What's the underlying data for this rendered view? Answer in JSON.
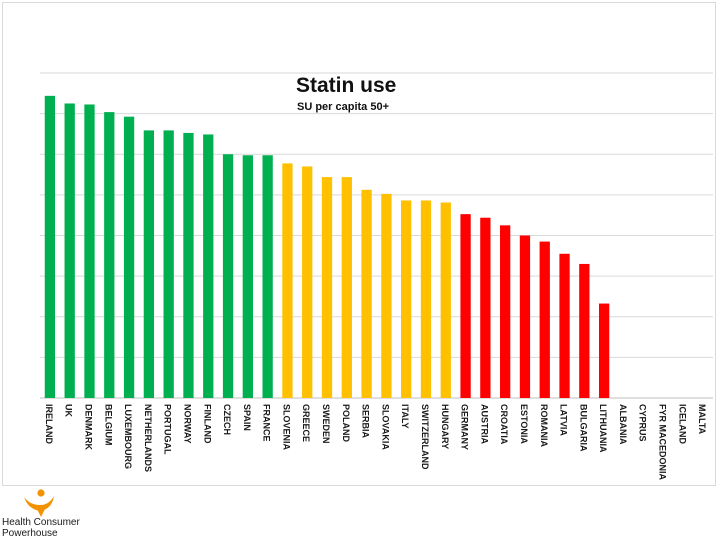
{
  "chart_data": {
    "type": "bar",
    "title": "Statin use",
    "subtitle": "SU per capita 50+",
    "ylim": [
      0,
      640
    ],
    "grid": true,
    "categories": [
      "IRELAND",
      "UK",
      "DENMARK",
      "BELGIUM",
      "LUXEMBOURG",
      "NETHERLANDS",
      "PORTUGAL",
      "NORWAY",
      "FINLAND",
      "CZECH",
      "SPAIN",
      "FRANCE",
      "SLOVENIA",
      "GREECE",
      "SWEDEN",
      "POLAND",
      "SERBIA",
      "SLOVAKIA",
      "ITALY",
      "SWITZERLAND",
      "HUNGARY",
      "GERMANY",
      "AUSTRIA",
      "CROATIA",
      "ESTONIA",
      "ROMANIA",
      "LATVIA",
      "BULGARIA",
      "LITHUANIA",
      "ALBANIA",
      "CYPRUS",
      "FYR MACEDONIA",
      "ICELAND",
      "MALTA"
    ],
    "values": [
      595,
      580,
      578,
      563,
      554,
      527,
      527,
      522,
      519,
      480,
      478,
      478,
      462,
      456,
      435,
      435,
      410,
      402,
      389,
      389,
      385,
      362,
      355,
      340,
      320,
      308,
      284,
      264,
      186,
      0,
      0,
      0,
      0,
      0
    ],
    "colors": [
      "#00B050",
      "#00B050",
      "#00B050",
      "#00B050",
      "#00B050",
      "#00B050",
      "#00B050",
      "#00B050",
      "#00B050",
      "#00B050",
      "#00B050",
      "#00B050",
      "#FFC000",
      "#FFC000",
      "#FFC000",
      "#FFC000",
      "#FFC000",
      "#FFC000",
      "#FFC000",
      "#FFC000",
      "#FFC000",
      "#FF0000",
      "#FF0000",
      "#FF0000",
      "#FF0000",
      "#FF0000",
      "#FF0000",
      "#FF0000",
      "#FF0000",
      "#00B050",
      "#00B050",
      "#00B050",
      "#00B050",
      "#00B050"
    ]
  },
  "branding": {
    "logo_line1": "Health Consumer",
    "logo_line2": "Powerhouse",
    "logo_color": "#F39200"
  }
}
